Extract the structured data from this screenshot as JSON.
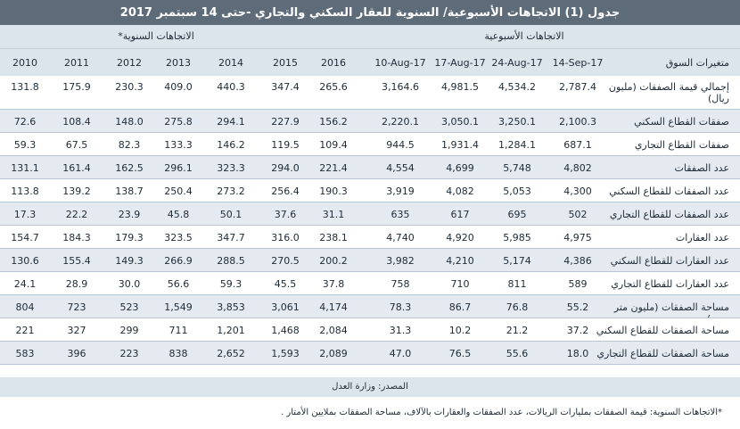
{
  "title": "جدول (1) الاتجاهات الأسبوعية/ السنوية للعقار السكني والتجاري -حتى 14 سبتمبر 2017",
  "groups": {
    "weekly": "الاتجاهات الأسبوعية",
    "annual": "الاتجاهات السنوية*"
  },
  "columns": {
    "indicator": "متغيرات السوق",
    "weekly": [
      "14-Sep-17",
      "24-Aug-17",
      "17-Aug-17",
      "10-Aug-17"
    ],
    "annual": [
      "2016",
      "2015",
      "2014",
      "2013",
      "2012",
      "2011",
      "2010"
    ]
  },
  "rows": [
    {
      "label": "إجمالي قيمة الصفقات (مليون ريال)",
      "values": [
        "2,787.4",
        "4,534.2",
        "4,981.5",
        "3,164.6",
        "265.6",
        "347.4",
        "440.3",
        "409.0",
        "230.3",
        "175.9",
        "131.8"
      ]
    },
    {
      "label": "صفقات القطاع السكني",
      "values": [
        "2,100.3",
        "3,250.1",
        "3,050.1",
        "2,220.1",
        "156.2",
        "227.9",
        "294.1",
        "275.8",
        "148.0",
        "108.4",
        "72.6"
      ]
    },
    {
      "label": "صفقات القطاع التجاري",
      "values": [
        "687.1",
        "1,284.1",
        "1,931.4",
        "944.5",
        "109.4",
        "119.5",
        "146.2",
        "133.3",
        "82.3",
        "67.5",
        "59.3"
      ]
    },
    {
      "label": "عدد الصفقات",
      "values": [
        "4,802",
        "5,748",
        "4,699",
        "4,554",
        "221.4",
        "294.0",
        "323.3",
        "296.1",
        "162.5",
        "161.4",
        "131.1"
      ]
    },
    {
      "label": "عدد الصفقات للقطاع السكني",
      "values": [
        "4,300",
        "5,053",
        "4,082",
        "3,919",
        "190.3",
        "256.4",
        "273.2",
        "250.4",
        "138.7",
        "139.2",
        "113.8"
      ]
    },
    {
      "label": "عدد الصفقات للقطاع التجاري",
      "values": [
        "502",
        "695",
        "617",
        "635",
        "31.1",
        "37.6",
        "50.1",
        "45.8",
        "23.9",
        "22.2",
        "17.3"
      ]
    },
    {
      "label": "عدد العقارات",
      "values": [
        "4,975",
        "5,985",
        "4,920",
        "4,740",
        "238.1",
        "316.0",
        "347.7",
        "323.5",
        "179.3",
        "184.3",
        "154.7"
      ]
    },
    {
      "label": "عدد العقارات للقطاع السكني",
      "values": [
        "4,386",
        "5,174",
        "4,210",
        "3,982",
        "200.2",
        "270.5",
        "288.5",
        "266.9",
        "149.3",
        "155.4",
        "130.6"
      ]
    },
    {
      "label": "عدد العقارات للقطاع التجاري",
      "values": [
        "589",
        "811",
        "710",
        "758",
        "37.8",
        "45.5",
        "59.3",
        "56.6",
        "30.0",
        "28.9",
        "24.1"
      ]
    },
    {
      "label": "مساحة الصفقات (مليون متر مربع)",
      "values": [
        "55.2",
        "76.8",
        "86.7",
        "78.3",
        "4,174",
        "3,061",
        "3,853",
        "1,549",
        "523",
        "723",
        "804"
      ]
    },
    {
      "label": "مساحة الصفقات للقطاع السكني",
      "values": [
        "37.2",
        "21.2",
        "10.2",
        "31.3",
        "2,084",
        "1,468",
        "1,201",
        "711",
        "299",
        "327",
        "221"
      ]
    },
    {
      "label": "مساحة الصفقات للقطاع التجاري",
      "values": [
        "18.0",
        "55.6",
        "76.5",
        "47.0",
        "2,089",
        "1,593",
        "2,652",
        "838",
        "223",
        "396",
        "583"
      ]
    }
  ],
  "source": "المصدر: وزارة العدل",
  "note": "*الاتجاهات السنوية: قيمة الصفقات بمليارات الريالات، عدد الصفقات والعقارات بالآلاف، مساحة الصفقات بملايين الأمتار ."
}
